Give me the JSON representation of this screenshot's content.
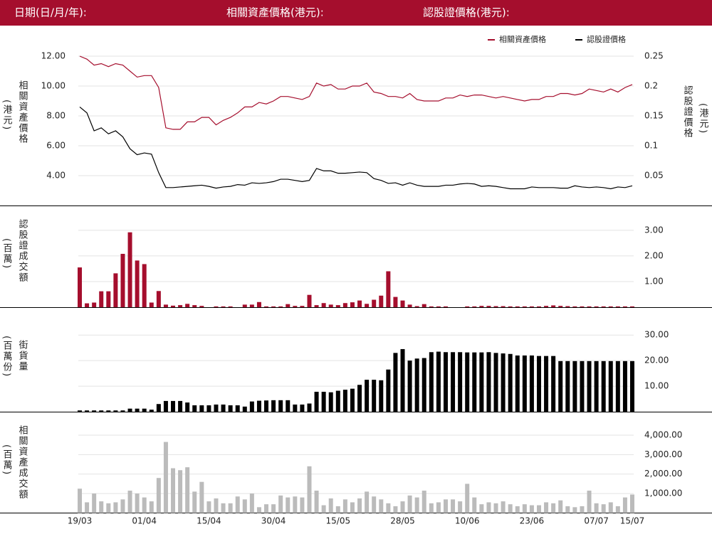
{
  "header": {
    "date_label": "日期(日/月/年):",
    "underlying_label": "相關資產價格(港元):",
    "warrant_label": "認股證價格(港元):"
  },
  "chart_data": [
    {
      "type": "line",
      "legend": "top-right",
      "ylabel": "相關資產價格",
      "ylabel_unit": "(港元)",
      "y2label": "認股證價格",
      "y2label_unit": "(港元)",
      "ylim": [
        2,
        12.5
      ],
      "yticks": [
        {
          "value": 4,
          "label": "4.00"
        },
        {
          "value": 6,
          "label": "6.00"
        },
        {
          "value": 8,
          "label": "8.00"
        },
        {
          "value": 10,
          "label": "10.00"
        },
        {
          "value": 12,
          "label": "12.00"
        }
      ],
      "y2lim": [
        0,
        0.2625
      ],
      "y2ticks": [
        0.05,
        0.1,
        0.15,
        0.2,
        0.25
      ],
      "series": [
        {
          "name": "相關資產價格",
          "color": "#a50e2d",
          "values": [
            12.0,
            11.8,
            11.4,
            11.5,
            11.3,
            11.5,
            11.4,
            11.0,
            10.6,
            10.7,
            10.7,
            9.9,
            7.2,
            7.1,
            7.1,
            7.6,
            7.6,
            7.9,
            7.9,
            7.4,
            7.7,
            7.9,
            8.2,
            8.6,
            8.6,
            8.9,
            8.8,
            9.0,
            9.3,
            9.3,
            9.2,
            9.1,
            9.3,
            10.2,
            10.0,
            10.1,
            9.8,
            9.8,
            10.0,
            10.0,
            10.2,
            9.6,
            9.5,
            9.3,
            9.3,
            9.2,
            9.5,
            9.1,
            9.0,
            9.0,
            9.0,
            9.2,
            9.2,
            9.4,
            9.3,
            9.4,
            9.4,
            9.3,
            9.2,
            9.3,
            9.2,
            9.1,
            9.0,
            9.1,
            9.1,
            9.3,
            9.3,
            9.5,
            9.5,
            9.4,
            9.5,
            9.8,
            9.7,
            9.6,
            9.8,
            9.6,
            9.9,
            10.1
          ]
        },
        {
          "name": "認股證價格",
          "color": "#000000",
          "axis": "y2",
          "values": [
            0.165,
            0.155,
            0.125,
            0.13,
            0.12,
            0.125,
            0.115,
            0.095,
            0.085,
            0.088,
            0.086,
            0.055,
            0.03,
            0.03,
            0.031,
            0.032,
            0.033,
            0.034,
            0.032,
            0.029,
            0.031,
            0.032,
            0.035,
            0.034,
            0.038,
            0.037,
            0.038,
            0.04,
            0.044,
            0.044,
            0.042,
            0.04,
            0.042,
            0.062,
            0.058,
            0.058,
            0.054,
            0.054,
            0.055,
            0.056,
            0.055,
            0.045,
            0.042,
            0.037,
            0.038,
            0.034,
            0.038,
            0.034,
            0.032,
            0.032,
            0.032,
            0.034,
            0.034,
            0.036,
            0.037,
            0.036,
            0.032,
            0.033,
            0.032,
            0.03,
            0.028,
            0.028,
            0.028,
            0.031,
            0.03,
            0.03,
            0.03,
            0.029,
            0.029,
            0.033,
            0.031,
            0.03,
            0.031,
            0.03,
            0.028,
            0.031,
            0.03,
            0.033
          ]
        }
      ]
    },
    {
      "type": "bar",
      "color": "#a50e2d",
      "ylabel": "認股證成交額",
      "ylabel_unit": "(百萬)",
      "ylim": [
        0,
        3.3
      ],
      "yticks": [
        {
          "value": 1,
          "label": "1.00"
        },
        {
          "value": 2,
          "label": "2.00"
        },
        {
          "value": 3,
          "label": "3.00"
        }
      ],
      "values": [
        1.55,
        0.15,
        0.18,
        0.62,
        0.62,
        1.32,
        2.08,
        2.92,
        1.82,
        1.68,
        0.18,
        0.63,
        0.1,
        0.06,
        0.08,
        0.13,
        0.08,
        0.05,
        0,
        0.03,
        0.03,
        0.03,
        0,
        0.1,
        0.1,
        0.2,
        0.03,
        0.03,
        0.03,
        0.12,
        0.05,
        0.05,
        0.48,
        0.08,
        0.16,
        0.1,
        0.08,
        0.16,
        0.19,
        0.26,
        0.13,
        0.29,
        0.45,
        1.4,
        0.4,
        0.26,
        0.1,
        0.04,
        0.12,
        0.03,
        0.03,
        0.03,
        0,
        0,
        0.03,
        0.03,
        0.05,
        0.05,
        0.04,
        0.04,
        0.03,
        0.03,
        0.03,
        0.03,
        0.03,
        0.05,
        0.07,
        0.05,
        0.04,
        0.03,
        0.03,
        0.03,
        0.03,
        0.03,
        0.03,
        0.03,
        0.03,
        0.03
      ]
    },
    {
      "type": "bar",
      "color": "#000000",
      "ylabel": "街貨量",
      "ylabel_unit": "(百萬份)",
      "ylim": [
        0,
        32
      ],
      "yticks": [
        {
          "value": 10,
          "label": "10.00"
        },
        {
          "value": 20,
          "label": "20.00"
        },
        {
          "value": 30,
          "label": "30.00"
        }
      ],
      "values": [
        0.5,
        0.5,
        0.5,
        0.5,
        0.5,
        0.5,
        0.5,
        1.2,
        1.2,
        1.2,
        0.8,
        3.0,
        4.2,
        4.2,
        4.2,
        3.6,
        2.5,
        2.5,
        2.5,
        2.8,
        2.8,
        2.5,
        2.5,
        2.0,
        4.0,
        4.3,
        4.4,
        4.5,
        4.5,
        4.5,
        2.8,
        2.8,
        3.2,
        7.8,
        7.8,
        7.6,
        8.2,
        8.6,
        9.0,
        10.5,
        12.5,
        12.5,
        12.3,
        16.5,
        23.0,
        24.5,
        20.0,
        20.8,
        21.0,
        23.3,
        23.5,
        23.3,
        23.3,
        23.3,
        23.2,
        23.2,
        23.2,
        23.3,
        23.0,
        22.8,
        22.6,
        22.0,
        22.0,
        22.0,
        21.8,
        21.8,
        21.8,
        19.8,
        19.8,
        19.8,
        19.8,
        19.8,
        19.8,
        19.8,
        19.8,
        19.8,
        19.8,
        19.8
      ]
    },
    {
      "type": "bar",
      "color": "#bbbbbb",
      "ylabel": "相關資產成交額",
      "ylabel_unit": "(百萬)",
      "ylim": [
        0,
        4400
      ],
      "yticks": [
        {
          "value": 1000,
          "label": "1,000.00"
        },
        {
          "value": 2000,
          "label": "2,000.00"
        },
        {
          "value": 3000,
          "label": "3,000.00"
        },
        {
          "value": 4000,
          "label": "4,000.00"
        }
      ],
      "categories": [
        "19/03",
        null,
        null,
        null,
        null,
        null,
        null,
        null,
        null,
        "01/04",
        null,
        null,
        null,
        null,
        null,
        null,
        null,
        null,
        "15/04",
        null,
        null,
        null,
        null,
        null,
        null,
        null,
        null,
        "30/04",
        null,
        null,
        null,
        null,
        null,
        null,
        null,
        null,
        "15/05",
        null,
        null,
        null,
        null,
        null,
        null,
        null,
        null,
        "28/05",
        null,
        null,
        null,
        null,
        null,
        null,
        null,
        null,
        "10/06",
        null,
        null,
        null,
        null,
        null,
        null,
        null,
        null,
        "23/06",
        null,
        null,
        null,
        null,
        null,
        null,
        null,
        null,
        "07/07",
        null,
        null,
        null,
        null,
        "15/07"
      ],
      "values": [
        1250,
        550,
        1000,
        600,
        500,
        550,
        700,
        1150,
        1000,
        800,
        600,
        1800,
        3650,
        2300,
        2200,
        2350,
        1100,
        1600,
        600,
        750,
        500,
        500,
        850,
        700,
        1000,
        300,
        450,
        450,
        900,
        800,
        850,
        800,
        2400,
        1150,
        400,
        750,
        350,
        700,
        550,
        750,
        1100,
        850,
        700,
        500,
        350,
        600,
        900,
        800,
        1150,
        500,
        550,
        700,
        700,
        600,
        1500,
        800,
        450,
        550,
        500,
        600,
        450,
        350,
        450,
        400,
        400,
        550,
        500,
        650,
        350,
        300,
        350,
        1150,
        500,
        450,
        550,
        350,
        800,
        950
      ]
    }
  ]
}
